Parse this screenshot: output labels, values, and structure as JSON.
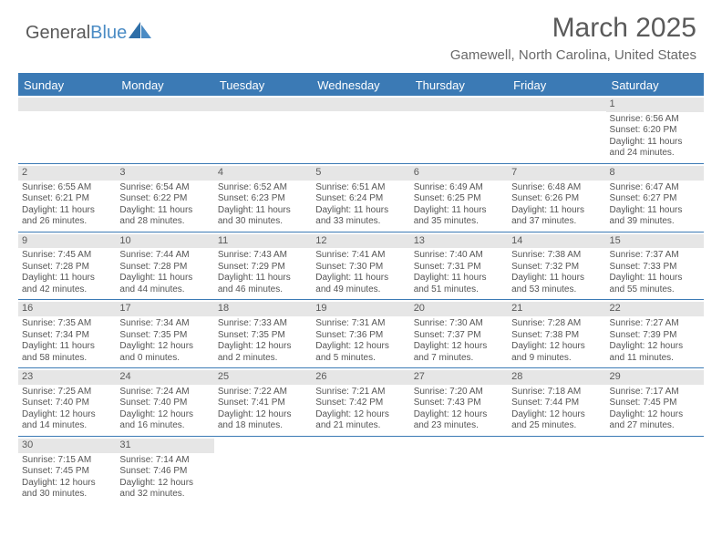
{
  "logo": {
    "text1": "General",
    "text2": "Blue"
  },
  "title": "March 2025",
  "location": "Gamewell, North Carolina, United States",
  "colors": {
    "header_bg": "#3b7ab5",
    "header_text": "#ffffff",
    "daynum_bg": "#e6e6e6",
    "text": "#555555"
  },
  "day_names": [
    "Sunday",
    "Monday",
    "Tuesday",
    "Wednesday",
    "Thursday",
    "Friday",
    "Saturday"
  ],
  "weeks": [
    [
      null,
      null,
      null,
      null,
      null,
      null,
      {
        "n": "1",
        "sr": "Sunrise: 6:56 AM",
        "ss": "Sunset: 6:20 PM",
        "d1": "Daylight: 11 hours",
        "d2": "and 24 minutes."
      }
    ],
    [
      {
        "n": "2",
        "sr": "Sunrise: 6:55 AM",
        "ss": "Sunset: 6:21 PM",
        "d1": "Daylight: 11 hours",
        "d2": "and 26 minutes."
      },
      {
        "n": "3",
        "sr": "Sunrise: 6:54 AM",
        "ss": "Sunset: 6:22 PM",
        "d1": "Daylight: 11 hours",
        "d2": "and 28 minutes."
      },
      {
        "n": "4",
        "sr": "Sunrise: 6:52 AM",
        "ss": "Sunset: 6:23 PM",
        "d1": "Daylight: 11 hours",
        "d2": "and 30 minutes."
      },
      {
        "n": "5",
        "sr": "Sunrise: 6:51 AM",
        "ss": "Sunset: 6:24 PM",
        "d1": "Daylight: 11 hours",
        "d2": "and 33 minutes."
      },
      {
        "n": "6",
        "sr": "Sunrise: 6:49 AM",
        "ss": "Sunset: 6:25 PM",
        "d1": "Daylight: 11 hours",
        "d2": "and 35 minutes."
      },
      {
        "n": "7",
        "sr": "Sunrise: 6:48 AM",
        "ss": "Sunset: 6:26 PM",
        "d1": "Daylight: 11 hours",
        "d2": "and 37 minutes."
      },
      {
        "n": "8",
        "sr": "Sunrise: 6:47 AM",
        "ss": "Sunset: 6:27 PM",
        "d1": "Daylight: 11 hours",
        "d2": "and 39 minutes."
      }
    ],
    [
      {
        "n": "9",
        "sr": "Sunrise: 7:45 AM",
        "ss": "Sunset: 7:28 PM",
        "d1": "Daylight: 11 hours",
        "d2": "and 42 minutes."
      },
      {
        "n": "10",
        "sr": "Sunrise: 7:44 AM",
        "ss": "Sunset: 7:28 PM",
        "d1": "Daylight: 11 hours",
        "d2": "and 44 minutes."
      },
      {
        "n": "11",
        "sr": "Sunrise: 7:43 AM",
        "ss": "Sunset: 7:29 PM",
        "d1": "Daylight: 11 hours",
        "d2": "and 46 minutes."
      },
      {
        "n": "12",
        "sr": "Sunrise: 7:41 AM",
        "ss": "Sunset: 7:30 PM",
        "d1": "Daylight: 11 hours",
        "d2": "and 49 minutes."
      },
      {
        "n": "13",
        "sr": "Sunrise: 7:40 AM",
        "ss": "Sunset: 7:31 PM",
        "d1": "Daylight: 11 hours",
        "d2": "and 51 minutes."
      },
      {
        "n": "14",
        "sr": "Sunrise: 7:38 AM",
        "ss": "Sunset: 7:32 PM",
        "d1": "Daylight: 11 hours",
        "d2": "and 53 minutes."
      },
      {
        "n": "15",
        "sr": "Sunrise: 7:37 AM",
        "ss": "Sunset: 7:33 PM",
        "d1": "Daylight: 11 hours",
        "d2": "and 55 minutes."
      }
    ],
    [
      {
        "n": "16",
        "sr": "Sunrise: 7:35 AM",
        "ss": "Sunset: 7:34 PM",
        "d1": "Daylight: 11 hours",
        "d2": "and 58 minutes."
      },
      {
        "n": "17",
        "sr": "Sunrise: 7:34 AM",
        "ss": "Sunset: 7:35 PM",
        "d1": "Daylight: 12 hours",
        "d2": "and 0 minutes."
      },
      {
        "n": "18",
        "sr": "Sunrise: 7:33 AM",
        "ss": "Sunset: 7:35 PM",
        "d1": "Daylight: 12 hours",
        "d2": "and 2 minutes."
      },
      {
        "n": "19",
        "sr": "Sunrise: 7:31 AM",
        "ss": "Sunset: 7:36 PM",
        "d1": "Daylight: 12 hours",
        "d2": "and 5 minutes."
      },
      {
        "n": "20",
        "sr": "Sunrise: 7:30 AM",
        "ss": "Sunset: 7:37 PM",
        "d1": "Daylight: 12 hours",
        "d2": "and 7 minutes."
      },
      {
        "n": "21",
        "sr": "Sunrise: 7:28 AM",
        "ss": "Sunset: 7:38 PM",
        "d1": "Daylight: 12 hours",
        "d2": "and 9 minutes."
      },
      {
        "n": "22",
        "sr": "Sunrise: 7:27 AM",
        "ss": "Sunset: 7:39 PM",
        "d1": "Daylight: 12 hours",
        "d2": "and 11 minutes."
      }
    ],
    [
      {
        "n": "23",
        "sr": "Sunrise: 7:25 AM",
        "ss": "Sunset: 7:40 PM",
        "d1": "Daylight: 12 hours",
        "d2": "and 14 minutes."
      },
      {
        "n": "24",
        "sr": "Sunrise: 7:24 AM",
        "ss": "Sunset: 7:40 PM",
        "d1": "Daylight: 12 hours",
        "d2": "and 16 minutes."
      },
      {
        "n": "25",
        "sr": "Sunrise: 7:22 AM",
        "ss": "Sunset: 7:41 PM",
        "d1": "Daylight: 12 hours",
        "d2": "and 18 minutes."
      },
      {
        "n": "26",
        "sr": "Sunrise: 7:21 AM",
        "ss": "Sunset: 7:42 PM",
        "d1": "Daylight: 12 hours",
        "d2": "and 21 minutes."
      },
      {
        "n": "27",
        "sr": "Sunrise: 7:20 AM",
        "ss": "Sunset: 7:43 PM",
        "d1": "Daylight: 12 hours",
        "d2": "and 23 minutes."
      },
      {
        "n": "28",
        "sr": "Sunrise: 7:18 AM",
        "ss": "Sunset: 7:44 PM",
        "d1": "Daylight: 12 hours",
        "d2": "and 25 minutes."
      },
      {
        "n": "29",
        "sr": "Sunrise: 7:17 AM",
        "ss": "Sunset: 7:45 PM",
        "d1": "Daylight: 12 hours",
        "d2": "and 27 minutes."
      }
    ],
    [
      {
        "n": "30",
        "sr": "Sunrise: 7:15 AM",
        "ss": "Sunset: 7:45 PM",
        "d1": "Daylight: 12 hours",
        "d2": "and 30 minutes."
      },
      {
        "n": "31",
        "sr": "Sunrise: 7:14 AM",
        "ss": "Sunset: 7:46 PM",
        "d1": "Daylight: 12 hours",
        "d2": "and 32 minutes."
      },
      null,
      null,
      null,
      null,
      null
    ]
  ]
}
